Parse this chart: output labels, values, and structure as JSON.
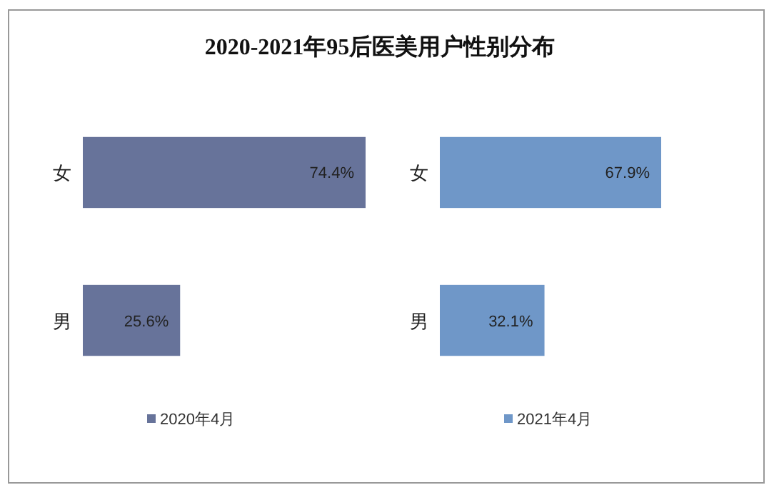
{
  "chart_data": [
    {
      "type": "bar",
      "title": "2020-2021年95后医美用户性别分布",
      "orientation": "horizontal",
      "categories": [
        "女",
        "男"
      ],
      "series": [
        {
          "name": "2020年4月",
          "color": "#67739a",
          "values": [
            74.4,
            25.6
          ],
          "value_labels": [
            "74.4%",
            "25.6%"
          ]
        }
      ],
      "legend": "bottom"
    },
    {
      "type": "bar",
      "orientation": "horizontal",
      "categories": [
        "女",
        "男"
      ],
      "series": [
        {
          "name": "2021年4月",
          "color": "#6f97c8",
          "values": [
            67.9,
            32.1
          ],
          "value_labels": [
            "67.9%",
            "32.1%"
          ]
        }
      ],
      "legend": "bottom"
    }
  ]
}
